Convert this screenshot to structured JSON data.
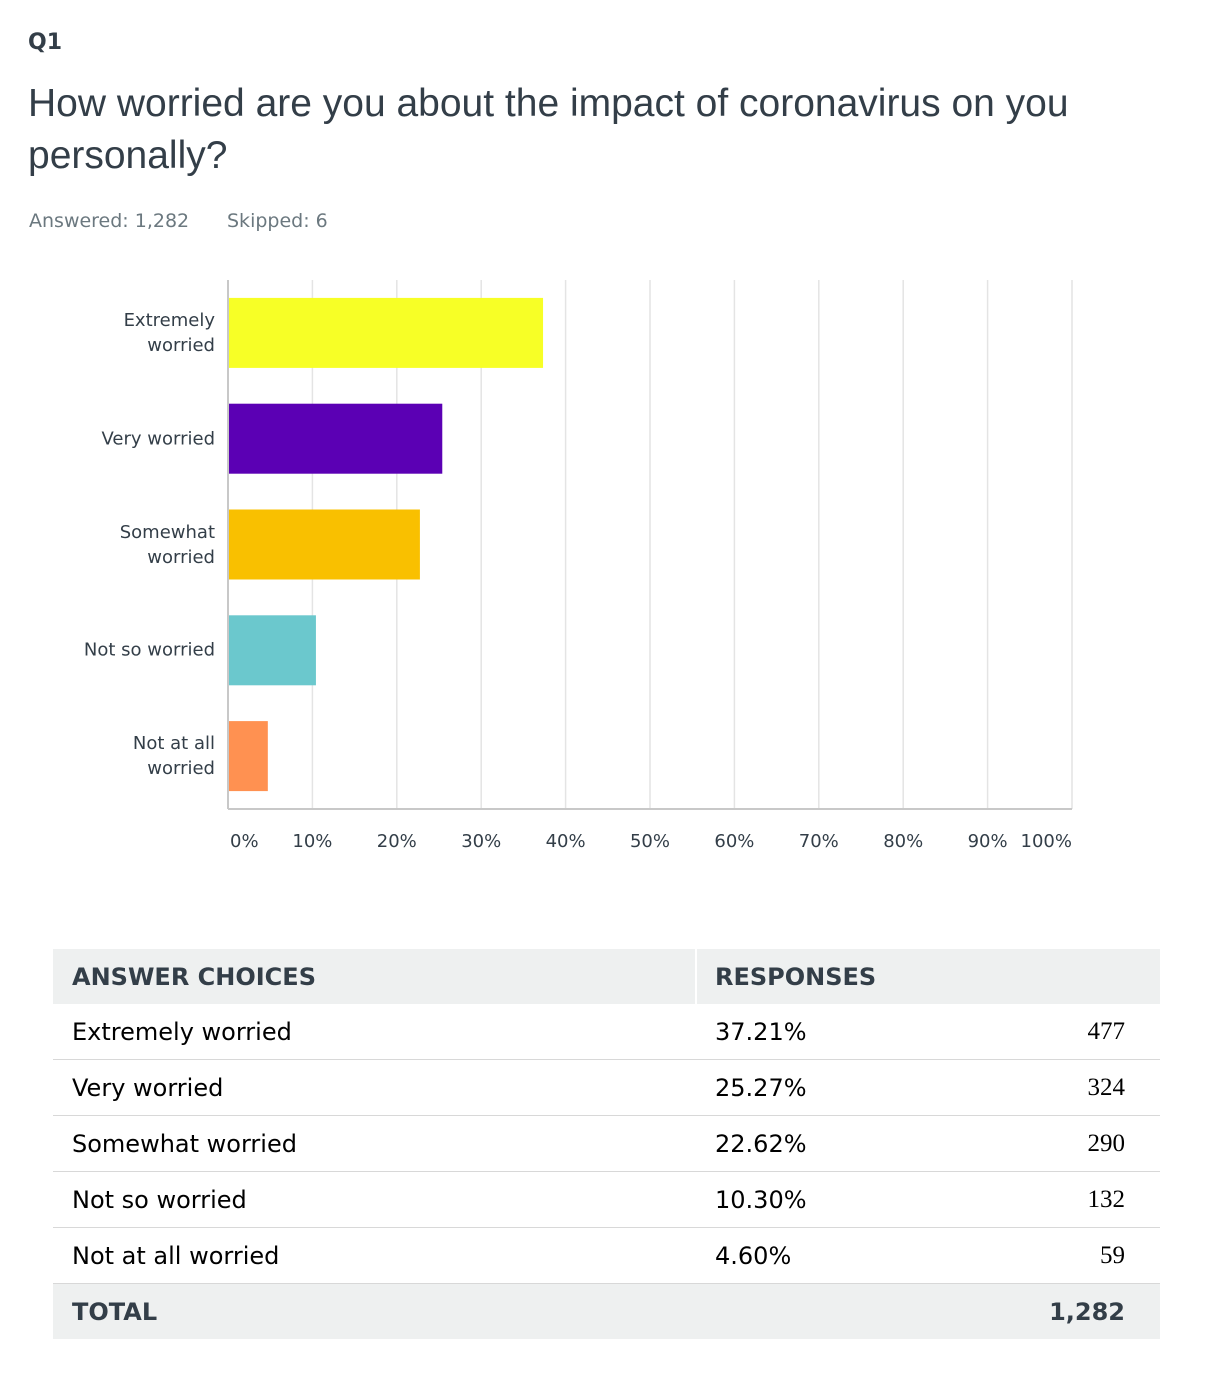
{
  "header": {
    "question": "Q1",
    "title": "How worried are you about the impact of coronavirus on you personally?",
    "answered": "Answered: 1,282",
    "skipped": "Skipped: 6"
  },
  "chart_data": {
    "type": "bar",
    "orientation": "horizontal",
    "categories": [
      "Extremely worried",
      "Very worried",
      "Somewhat worried",
      "Not so worried",
      "Not at all worried"
    ],
    "values": [
      37.21,
      25.27,
      22.62,
      10.3,
      4.6
    ],
    "colors": [
      "#f7ff26",
      "#5b00b4",
      "#f9c000",
      "#6bc8cd",
      "#ff9151"
    ],
    "xlim": [
      0,
      100
    ],
    "xticks": [
      {
        "value": 0,
        "label": "0%"
      },
      {
        "value": 10,
        "label": "10%"
      },
      {
        "value": 20,
        "label": "20%"
      },
      {
        "value": 30,
        "label": "30%"
      },
      {
        "value": 40,
        "label": "40%"
      },
      {
        "value": 50,
        "label": "50%"
      },
      {
        "value": 60,
        "label": "60%"
      },
      {
        "value": 70,
        "label": "70%"
      },
      {
        "value": 80,
        "label": "80%"
      },
      {
        "value": 90,
        "label": "90%"
      },
      {
        "value": 100,
        "label": "100%"
      }
    ],
    "grid": true
  },
  "table": {
    "headers": [
      "ANSWER CHOICES",
      "RESPONSES"
    ],
    "rows": [
      [
        "Extremely worried",
        "37.21%",
        "477"
      ],
      [
        "Very worried",
        "25.27%",
        "324"
      ],
      [
        "Somewhat worried",
        "22.62%",
        "290"
      ],
      [
        "Not so worried",
        "10.30%",
        "132"
      ],
      [
        "Not at all worried",
        "4.60%",
        "59"
      ]
    ],
    "total": [
      "TOTAL",
      "1,282"
    ]
  }
}
